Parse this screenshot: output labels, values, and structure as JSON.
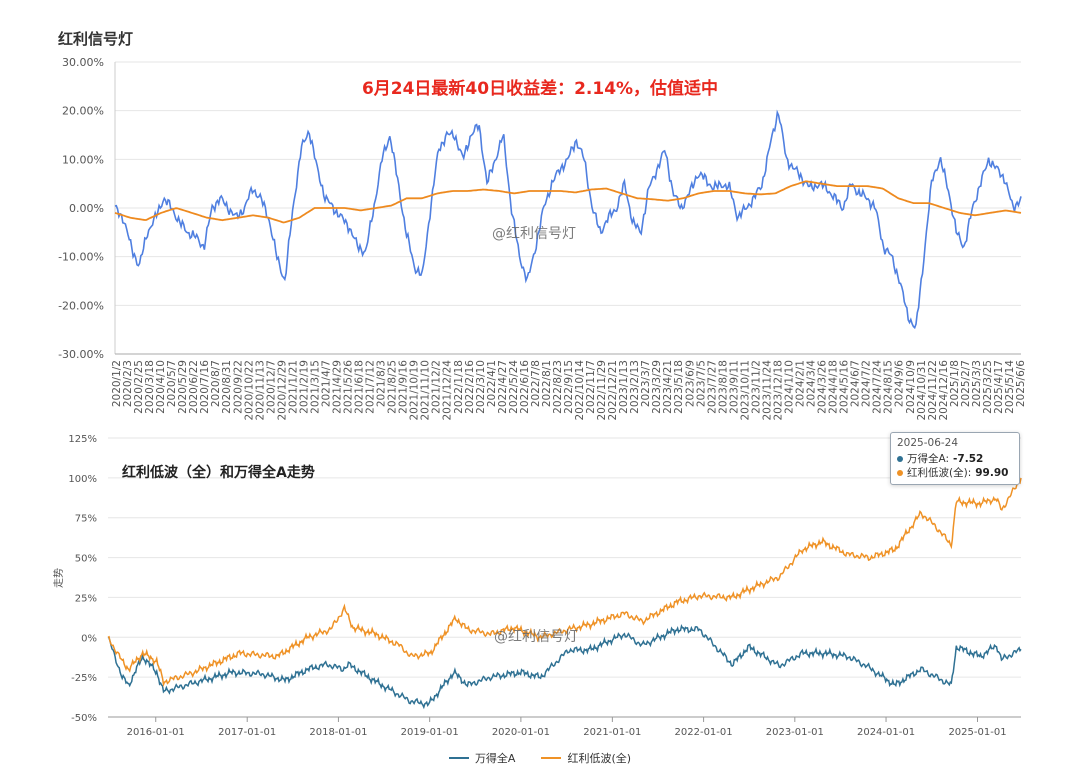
{
  "top_chart": {
    "title": "红利信号灯",
    "headline": "6月24日最新40日收益差：2.14%，估值适中",
    "watermark": "@红利信号灯",
    "colors": {
      "spread": "#4f7fe0",
      "average": "#ee8a1f"
    },
    "chart_data": {
      "type": "line",
      "ylim": [
        -0.3,
        0.3
      ],
      "y_ticks": [
        "30.00%",
        "20.00%",
        "10.00%",
        "0.00%",
        "-10.00%",
        "-20.00%",
        "-30.00%"
      ],
      "x_ticks": [
        "2020/1/2",
        "2020/2/3",
        "2020/2/25",
        "2020/3/18",
        "2020/4/10",
        "2020/5/7",
        "2020/5/29",
        "2020/6/22",
        "2020/7/16",
        "2020/8/7",
        "2020/8/31",
        "2020/9/22",
        "2020/10/22",
        "2020/11/13",
        "2020/12/7",
        "2020/12/29",
        "2021/1/21",
        "2021/2/19",
        "2021/3/15",
        "2021/4/7",
        "2021/4/29",
        "2021/5/26",
        "2021/6/18",
        "2021/7/12",
        "2021/8/3",
        "2021/8/25",
        "2021/9/16",
        "2021/10/19",
        "2021/11/10",
        "2021/12/2",
        "2021/12/24",
        "2022/1/18",
        "2022/2/16",
        "2022/3/10",
        "2022/4/1",
        "2022/4/27",
        "2022/5/24",
        "2022/6/16",
        "2022/7/8",
        "2022/8/1",
        "2022/8/23",
        "2022/9/15",
        "2022/10/14",
        "2022/11/7",
        "2022/11/29",
        "2022/12/21",
        "2023/1/13",
        "2023/2/13",
        "2023/3/7",
        "2023/3/29",
        "2023/4/21",
        "2023/5/18",
        "2023/6/9",
        "2023/7/5",
        "2023/7/27",
        "2023/8/18",
        "2023/9/11",
        "2023/10/11",
        "2023/11/2",
        "2023/11/24",
        "2023/12/18",
        "2024/1/10",
        "2024/2/1",
        "2024/3/4",
        "2024/3/26",
        "2024/4/18",
        "2024/5/16",
        "2024/6/7",
        "2024/7/2",
        "2024/7/24",
        "2024/8/15",
        "2024/9/6",
        "2024/10/9",
        "2024/10/31",
        "2024/11/22",
        "2024/12/16",
        "2025/1/8",
        "2025/2/7",
        "2025/3/3",
        "2025/3/25",
        "2025/4/17",
        "2025/5/14",
        "2025/6/6"
      ],
      "spread_anchors": [
        0.0,
        -0.02,
        -0.08,
        -0.12,
        -0.05,
        -0.02,
        0.02,
        0.0,
        -0.03,
        -0.05,
        -0.06,
        -0.08,
        0.0,
        0.02,
        0.0,
        -0.02,
        0.0,
        0.04,
        0.02,
        -0.02,
        -0.1,
        -0.15,
        0.0,
        0.12,
        0.16,
        0.08,
        0.02,
        0.0,
        -0.02,
        -0.04,
        -0.08,
        -0.09,
        0.0,
        0.1,
        0.15,
        0.05,
        -0.05,
        -0.12,
        -0.14,
        0.0,
        0.12,
        0.15,
        0.15,
        0.1,
        0.15,
        0.17,
        0.05,
        0.1,
        0.15,
        0.0,
        -0.1,
        -0.15,
        -0.08,
        0.0,
        0.05,
        0.08,
        0.1,
        0.14,
        0.1,
        0.0,
        -0.05,
        -0.02,
        0.0,
        0.05,
        -0.03,
        -0.05,
        0.04,
        0.08,
        0.12,
        0.03,
        0.0,
        0.03,
        0.07,
        0.06,
        0.04,
        0.05,
        0.04,
        -0.02,
        0.0,
        0.02,
        0.05,
        0.13,
        0.2,
        0.1,
        0.08,
        0.06,
        0.04,
        0.05,
        0.04,
        0.02,
        0.0,
        0.05,
        0.03,
        0.02,
        0.0,
        -0.08,
        -0.1,
        -0.15,
        -0.22,
        -0.25,
        -0.1,
        0.06,
        0.1,
        0.04,
        -0.05,
        -0.08,
        0.0,
        0.05,
        0.1,
        0.08,
        0.06,
        0.0,
        0.02
      ],
      "average_anchors": [
        -0.01,
        -0.02,
        -0.025,
        -0.01,
        0.0,
        -0.01,
        -0.02,
        -0.025,
        -0.02,
        -0.015,
        -0.02,
        -0.03,
        -0.02,
        0.0,
        0.0,
        0.0,
        -0.005,
        0.0,
        0.005,
        0.02,
        0.02,
        0.03,
        0.035,
        0.035,
        0.038,
        0.035,
        0.03,
        0.035,
        0.035,
        0.035,
        0.032,
        0.038,
        0.04,
        0.03,
        0.02,
        0.018,
        0.015,
        0.02,
        0.03,
        0.035,
        0.035,
        0.03,
        0.028,
        0.03,
        0.045,
        0.055,
        0.05,
        0.045,
        0.045,
        0.045,
        0.04,
        0.02,
        0.01,
        0.01,
        0.0,
        -0.01,
        -0.015,
        -0.01,
        -0.005,
        -0.01
      ]
    }
  },
  "bottom_chart": {
    "title": "红利低波（全）和万得全A走势",
    "watermark": "@红利信号灯",
    "ylabel": "走势",
    "tooltip": {
      "date": "2025-06-24",
      "series": [
        {
          "name": "万得全A:",
          "value": "-7.52"
        },
        {
          "name": "红利低波(全):",
          "value": "99.90"
        }
      ]
    },
    "legend": [
      {
        "label": "万得全A"
      },
      {
        "label": "红利低波(全)"
      }
    ],
    "colors": {
      "wind": "#2f7193",
      "dividend": "#ef9226"
    },
    "chart_data": {
      "type": "line",
      "ylim": [
        -0.5,
        1.25
      ],
      "y_ticks": [
        "125%",
        "100%",
        "75%",
        "50%",
        "25%",
        "0%",
        "-25%",
        "-50%"
      ],
      "x_ticks": [
        "2016-01-01",
        "2017-01-01",
        "2018-01-01",
        "2019-01-01",
        "2020-01-01",
        "2021-01-01",
        "2022-01-01",
        "2023-01-01",
        "2024-01-01",
        "2025-01-01"
      ],
      "x_range": [
        "2015-06-24",
        "2025-06-24"
      ],
      "series": [
        {
          "name": "万得全A",
          "points": [
            [
              "2015-06-24",
              0.0
            ],
            [
              "2015-08-20",
              -0.25
            ],
            [
              "2015-09-15",
              -0.3
            ],
            [
              "2015-11-10",
              -0.12
            ],
            [
              "2016-01-05",
              -0.22
            ],
            [
              "2016-02-01",
              -0.34
            ],
            [
              "2016-05-01",
              -0.3
            ],
            [
              "2016-11-01",
              -0.22
            ],
            [
              "2017-03-01",
              -0.23
            ],
            [
              "2017-06-01",
              -0.27
            ],
            [
              "2017-09-01",
              -0.2
            ],
            [
              "2017-11-15",
              -0.17
            ],
            [
              "2018-01-20",
              -0.2
            ],
            [
              "2018-02-10",
              -0.17
            ],
            [
              "2018-06-01",
              -0.28
            ],
            [
              "2018-10-15",
              -0.4
            ],
            [
              "2018-12-28",
              -0.42
            ],
            [
              "2019-04-08",
              -0.22
            ],
            [
              "2019-06-01",
              -0.3
            ],
            [
              "2019-09-01",
              -0.25
            ],
            [
              "2019-12-31",
              -0.22
            ],
            [
              "2020-03-20",
              -0.25
            ],
            [
              "2020-07-10",
              -0.08
            ],
            [
              "2020-10-01",
              -0.08
            ],
            [
              "2021-02-18",
              0.02
            ],
            [
              "2021-05-01",
              -0.05
            ],
            [
              "2021-09-15",
              0.05
            ],
            [
              "2021-12-15",
              0.05
            ],
            [
              "2022-04-26",
              -0.17
            ],
            [
              "2022-07-01",
              -0.06
            ],
            [
              "2022-10-31",
              -0.18
            ],
            [
              "2023-01-31",
              -0.1
            ],
            [
              "2023-05-01",
              -0.1
            ],
            [
              "2023-08-01",
              -0.12
            ],
            [
              "2023-10-15",
              -0.18
            ],
            [
              "2024-02-05",
              -0.3
            ],
            [
              "2024-05-20",
              -0.2
            ],
            [
              "2024-09-18",
              -0.3
            ],
            [
              "2024-10-08",
              -0.06
            ],
            [
              "2025-01-13",
              -0.12
            ],
            [
              "2025-03-18",
              -0.05
            ],
            [
              "2025-04-07",
              -0.14
            ],
            [
              "2025-06-24",
              -0.0752
            ]
          ]
        },
        {
          "name": "红利低波(全)",
          "points": [
            [
              "2015-06-24",
              0.0
            ],
            [
              "2015-08-20",
              -0.15
            ],
            [
              "2015-09-15",
              -0.2
            ],
            [
              "2015-11-10",
              -0.1
            ],
            [
              "2016-01-05",
              -0.15
            ],
            [
              "2016-02-01",
              -0.28
            ],
            [
              "2016-06-01",
              -0.22
            ],
            [
              "2016-12-01",
              -0.1
            ],
            [
              "2017-05-01",
              -0.12
            ],
            [
              "2017-09-01",
              0.0
            ],
            [
              "2017-12-01",
              0.05
            ],
            [
              "2018-01-25",
              0.18
            ],
            [
              "2018-03-01",
              0.06
            ],
            [
              "2018-06-01",
              0.02
            ],
            [
              "2018-09-01",
              -0.05
            ],
            [
              "2018-10-20",
              -0.12
            ],
            [
              "2019-01-03",
              -0.1
            ],
            [
              "2019-04-15",
              0.12
            ],
            [
              "2019-06-01",
              0.05
            ],
            [
              "2019-09-01",
              0.02
            ],
            [
              "2019-12-01",
              0.06
            ],
            [
              "2020-03-20",
              0.0
            ],
            [
              "2020-07-10",
              0.05
            ],
            [
              "2020-10-01",
              0.08
            ],
            [
              "2021-02-18",
              0.15
            ],
            [
              "2021-05-01",
              0.1
            ],
            [
              "2021-09-15",
              0.22
            ],
            [
              "2021-12-15",
              0.26
            ],
            [
              "2022-04-26",
              0.25
            ],
            [
              "2022-07-01",
              0.3
            ],
            [
              "2022-11-01",
              0.38
            ],
            [
              "2023-01-31",
              0.55
            ],
            [
              "2023-04-20",
              0.6
            ],
            [
              "2023-08-01",
              0.52
            ],
            [
              "2023-10-31",
              0.5
            ],
            [
              "2024-02-05",
              0.55
            ],
            [
              "2024-05-20",
              0.78
            ],
            [
              "2024-07-15",
              0.7
            ],
            [
              "2024-09-18",
              0.58
            ],
            [
              "2024-10-08",
              0.85
            ],
            [
              "2025-01-13",
              0.84
            ],
            [
              "2025-03-15",
              0.87
            ],
            [
              "2025-04-08",
              0.8
            ],
            [
              "2025-06-24",
              0.999
            ]
          ]
        }
      ]
    }
  }
}
